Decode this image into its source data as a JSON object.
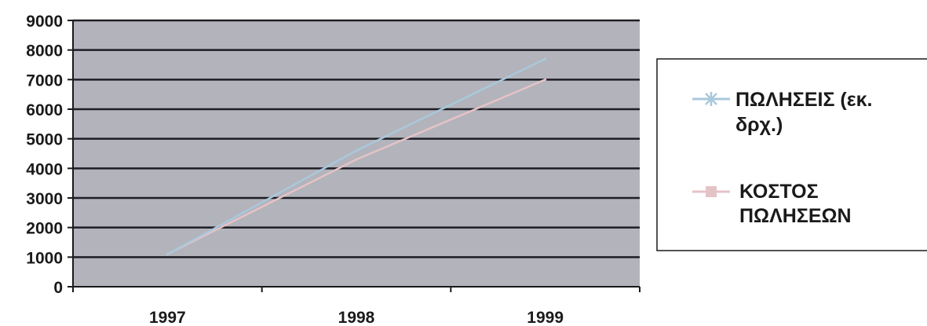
{
  "chart_data": {
    "type": "line",
    "categories": [
      "1997",
      "1998",
      "1999"
    ],
    "series": [
      {
        "name": "ΠΩΛΗΣΕΙΣ (εκ. δρχ.)",
        "name_lines": [
          "ΠΩΛΗΣΕΙΣ (εκ.",
          "δρχ.)"
        ],
        "values": [
          1100,
          4600,
          7700
        ],
        "color": "#a9c8dc",
        "marker": "x"
      },
      {
        "name": "ΚΟΣΤΟΣ ΠΩΛΗΣΕΩΝ",
        "name_lines": [
          "ΚΟΣΤΟΣ",
          "ΠΩΛΗΣΕΩΝ"
        ],
        "values": [
          1100,
          4300,
          7000
        ],
        "color": "#e4c3c7",
        "marker": "square"
      }
    ],
    "y_ticks": [
      "0",
      "1000",
      "2000",
      "3000",
      "4000",
      "5000",
      "6000",
      "7000",
      "8000",
      "9000"
    ],
    "ylim": [
      0,
      9000
    ],
    "grid": true,
    "legend_position": "right",
    "plot_background": "#b3b3bb",
    "gridline_color": "#1e1e24"
  }
}
